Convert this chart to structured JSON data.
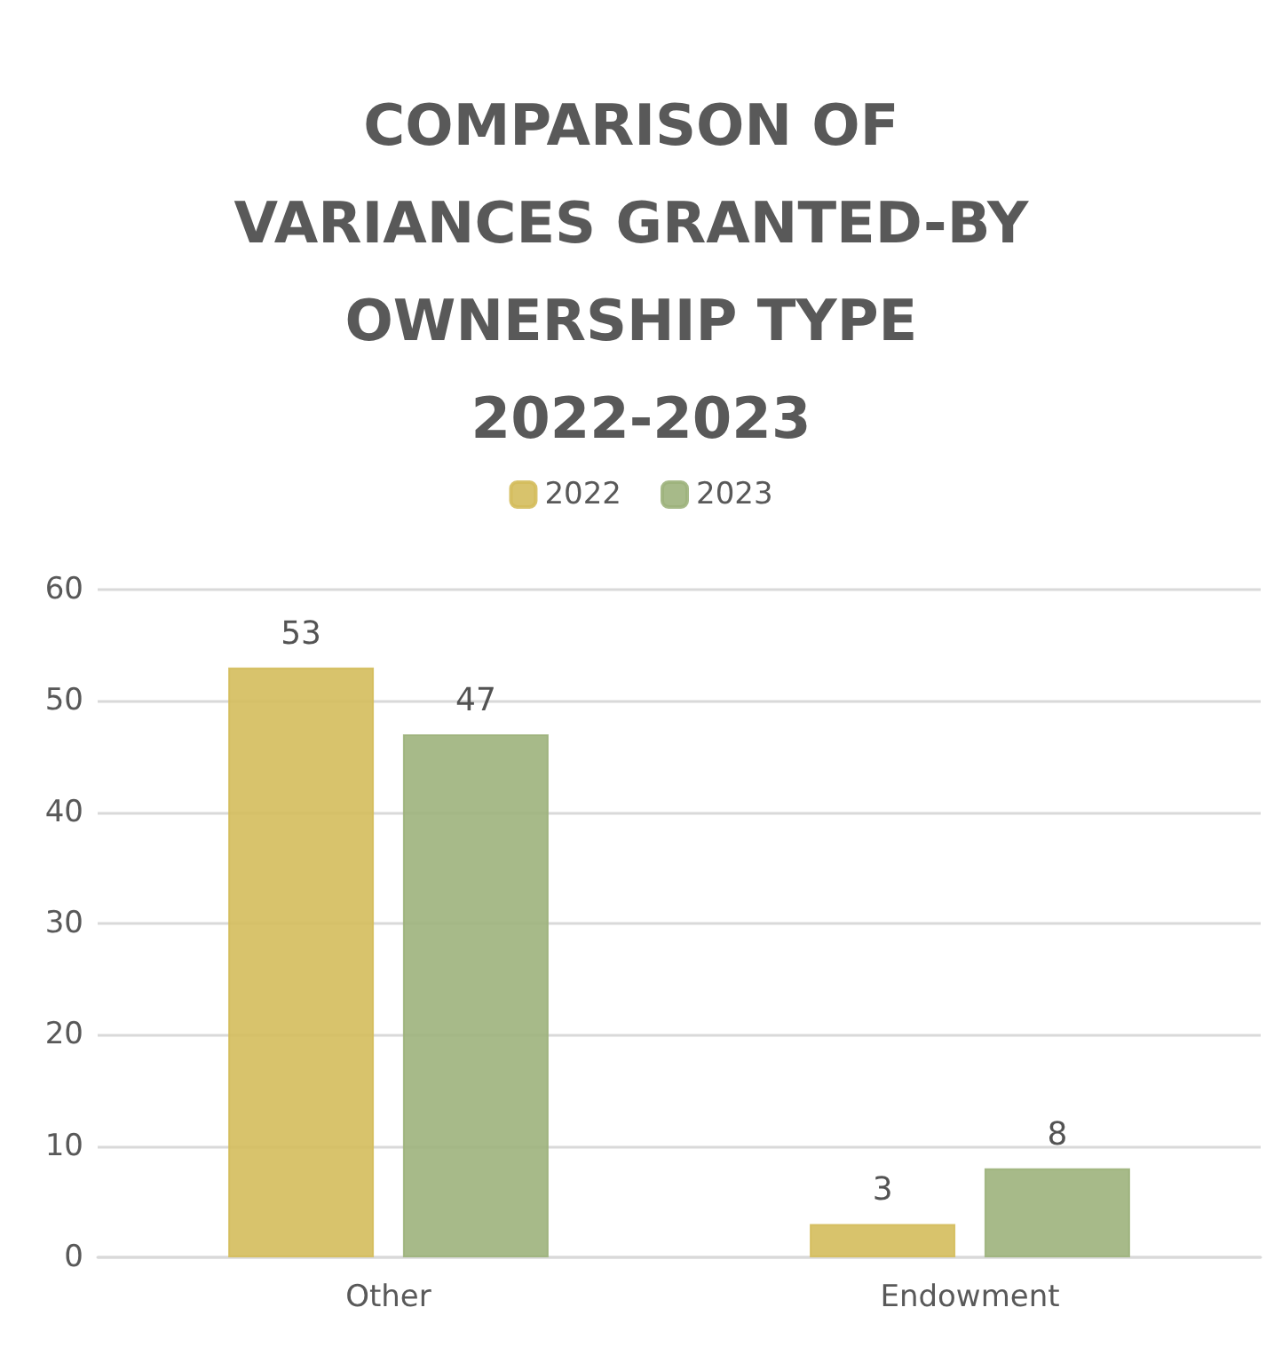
{
  "chart_data": {
    "type": "bar",
    "title": "COMPARISON OF VARIANCES GRANTED-BY OWNERSHIP TYPE 2022-2023",
    "categories": [
      "Other",
      "Endowment"
    ],
    "series": [
      {
        "name": "2022",
        "color": "#d4bc5c",
        "values": [
          53,
          3
        ]
      },
      {
        "name": "2023",
        "color": "#9db27c",
        "values": [
          47,
          8
        ]
      }
    ],
    "ylim": [
      0,
      60
    ],
    "yticks": [
      0,
      10,
      20,
      30,
      40,
      50,
      60
    ],
    "grid": "y",
    "legend": "top",
    "data_labels": true
  }
}
